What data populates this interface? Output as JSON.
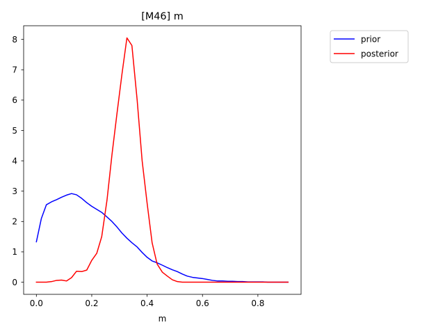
{
  "chart_data": {
    "type": "line",
    "title": "[M46] m",
    "xlabel": "m",
    "ylabel": "",
    "xlim": [
      -0.046,
      0.956
    ],
    "ylim": [
      -0.4,
      8.45
    ],
    "xticks": [
      0.0,
      0.2,
      0.4,
      0.6,
      0.8
    ],
    "xtick_labels": [
      "0.0",
      "0.2",
      "0.4",
      "0.6",
      "0.8"
    ],
    "yticks": [
      0,
      1,
      2,
      3,
      4,
      5,
      6,
      7,
      8
    ],
    "ytick_labels": [
      "0",
      "1",
      "2",
      "3",
      "4",
      "5",
      "6",
      "7",
      "8"
    ],
    "grid": false,
    "legend_position": "outside-top-right",
    "series": [
      {
        "name": "prior",
        "color": "#0000ff",
        "x": [
          0.0,
          0.018,
          0.036,
          0.055,
          0.073,
          0.091,
          0.109,
          0.127,
          0.145,
          0.164,
          0.182,
          0.2,
          0.218,
          0.236,
          0.255,
          0.273,
          0.291,
          0.309,
          0.327,
          0.345,
          0.364,
          0.382,
          0.4,
          0.418,
          0.436,
          0.455,
          0.473,
          0.491,
          0.509,
          0.527,
          0.545,
          0.564,
          0.582,
          0.6,
          0.618,
          0.636,
          0.655,
          0.673,
          0.691,
          0.709,
          0.727,
          0.745,
          0.764,
          0.782,
          0.8,
          0.818,
          0.836,
          0.855,
          0.873,
          0.891,
          0.909
        ],
        "y": [
          1.33,
          2.1,
          2.55,
          2.65,
          2.72,
          2.8,
          2.87,
          2.92,
          2.88,
          2.76,
          2.62,
          2.5,
          2.4,
          2.3,
          2.15,
          2.0,
          1.82,
          1.62,
          1.45,
          1.3,
          1.16,
          0.98,
          0.82,
          0.7,
          0.64,
          0.56,
          0.48,
          0.41,
          0.35,
          0.27,
          0.2,
          0.16,
          0.14,
          0.12,
          0.09,
          0.06,
          0.04,
          0.04,
          0.03,
          0.03,
          0.02,
          0.02,
          0.01,
          0.01,
          0.01,
          0.01,
          0.0,
          0.0,
          0.0,
          0.0,
          0.0
        ]
      },
      {
        "name": "posterior",
        "color": "#ff0000",
        "x": [
          0.0,
          0.018,
          0.036,
          0.055,
          0.073,
          0.091,
          0.109,
          0.127,
          0.145,
          0.164,
          0.182,
          0.2,
          0.218,
          0.236,
          0.255,
          0.273,
          0.291,
          0.309,
          0.327,
          0.345,
          0.364,
          0.382,
          0.4,
          0.418,
          0.436,
          0.455,
          0.473,
          0.491,
          0.509,
          0.527,
          0.545,
          0.564,
          0.582,
          0.6,
          0.618,
          0.636,
          0.655,
          0.673,
          0.691,
          0.709,
          0.727,
          0.745,
          0.764,
          0.782,
          0.8,
          0.818,
          0.836,
          0.855,
          0.873,
          0.891,
          0.909
        ],
        "y": [
          0.0,
          0.0,
          0.0,
          0.02,
          0.06,
          0.07,
          0.04,
          0.15,
          0.36,
          0.35,
          0.4,
          0.72,
          0.95,
          1.5,
          2.7,
          4.2,
          5.55,
          6.85,
          8.05,
          7.8,
          6.0,
          4.0,
          2.6,
          1.3,
          0.6,
          0.33,
          0.2,
          0.08,
          0.02,
          0.0,
          0.0,
          0.0,
          0.0,
          0.0,
          0.0,
          0.0,
          0.0,
          0.0,
          0.0,
          0.0,
          0.0,
          0.0,
          0.0,
          0.0,
          0.0,
          0.0,
          0.0,
          0.0,
          0.0,
          0.0,
          0.0
        ]
      }
    ]
  }
}
